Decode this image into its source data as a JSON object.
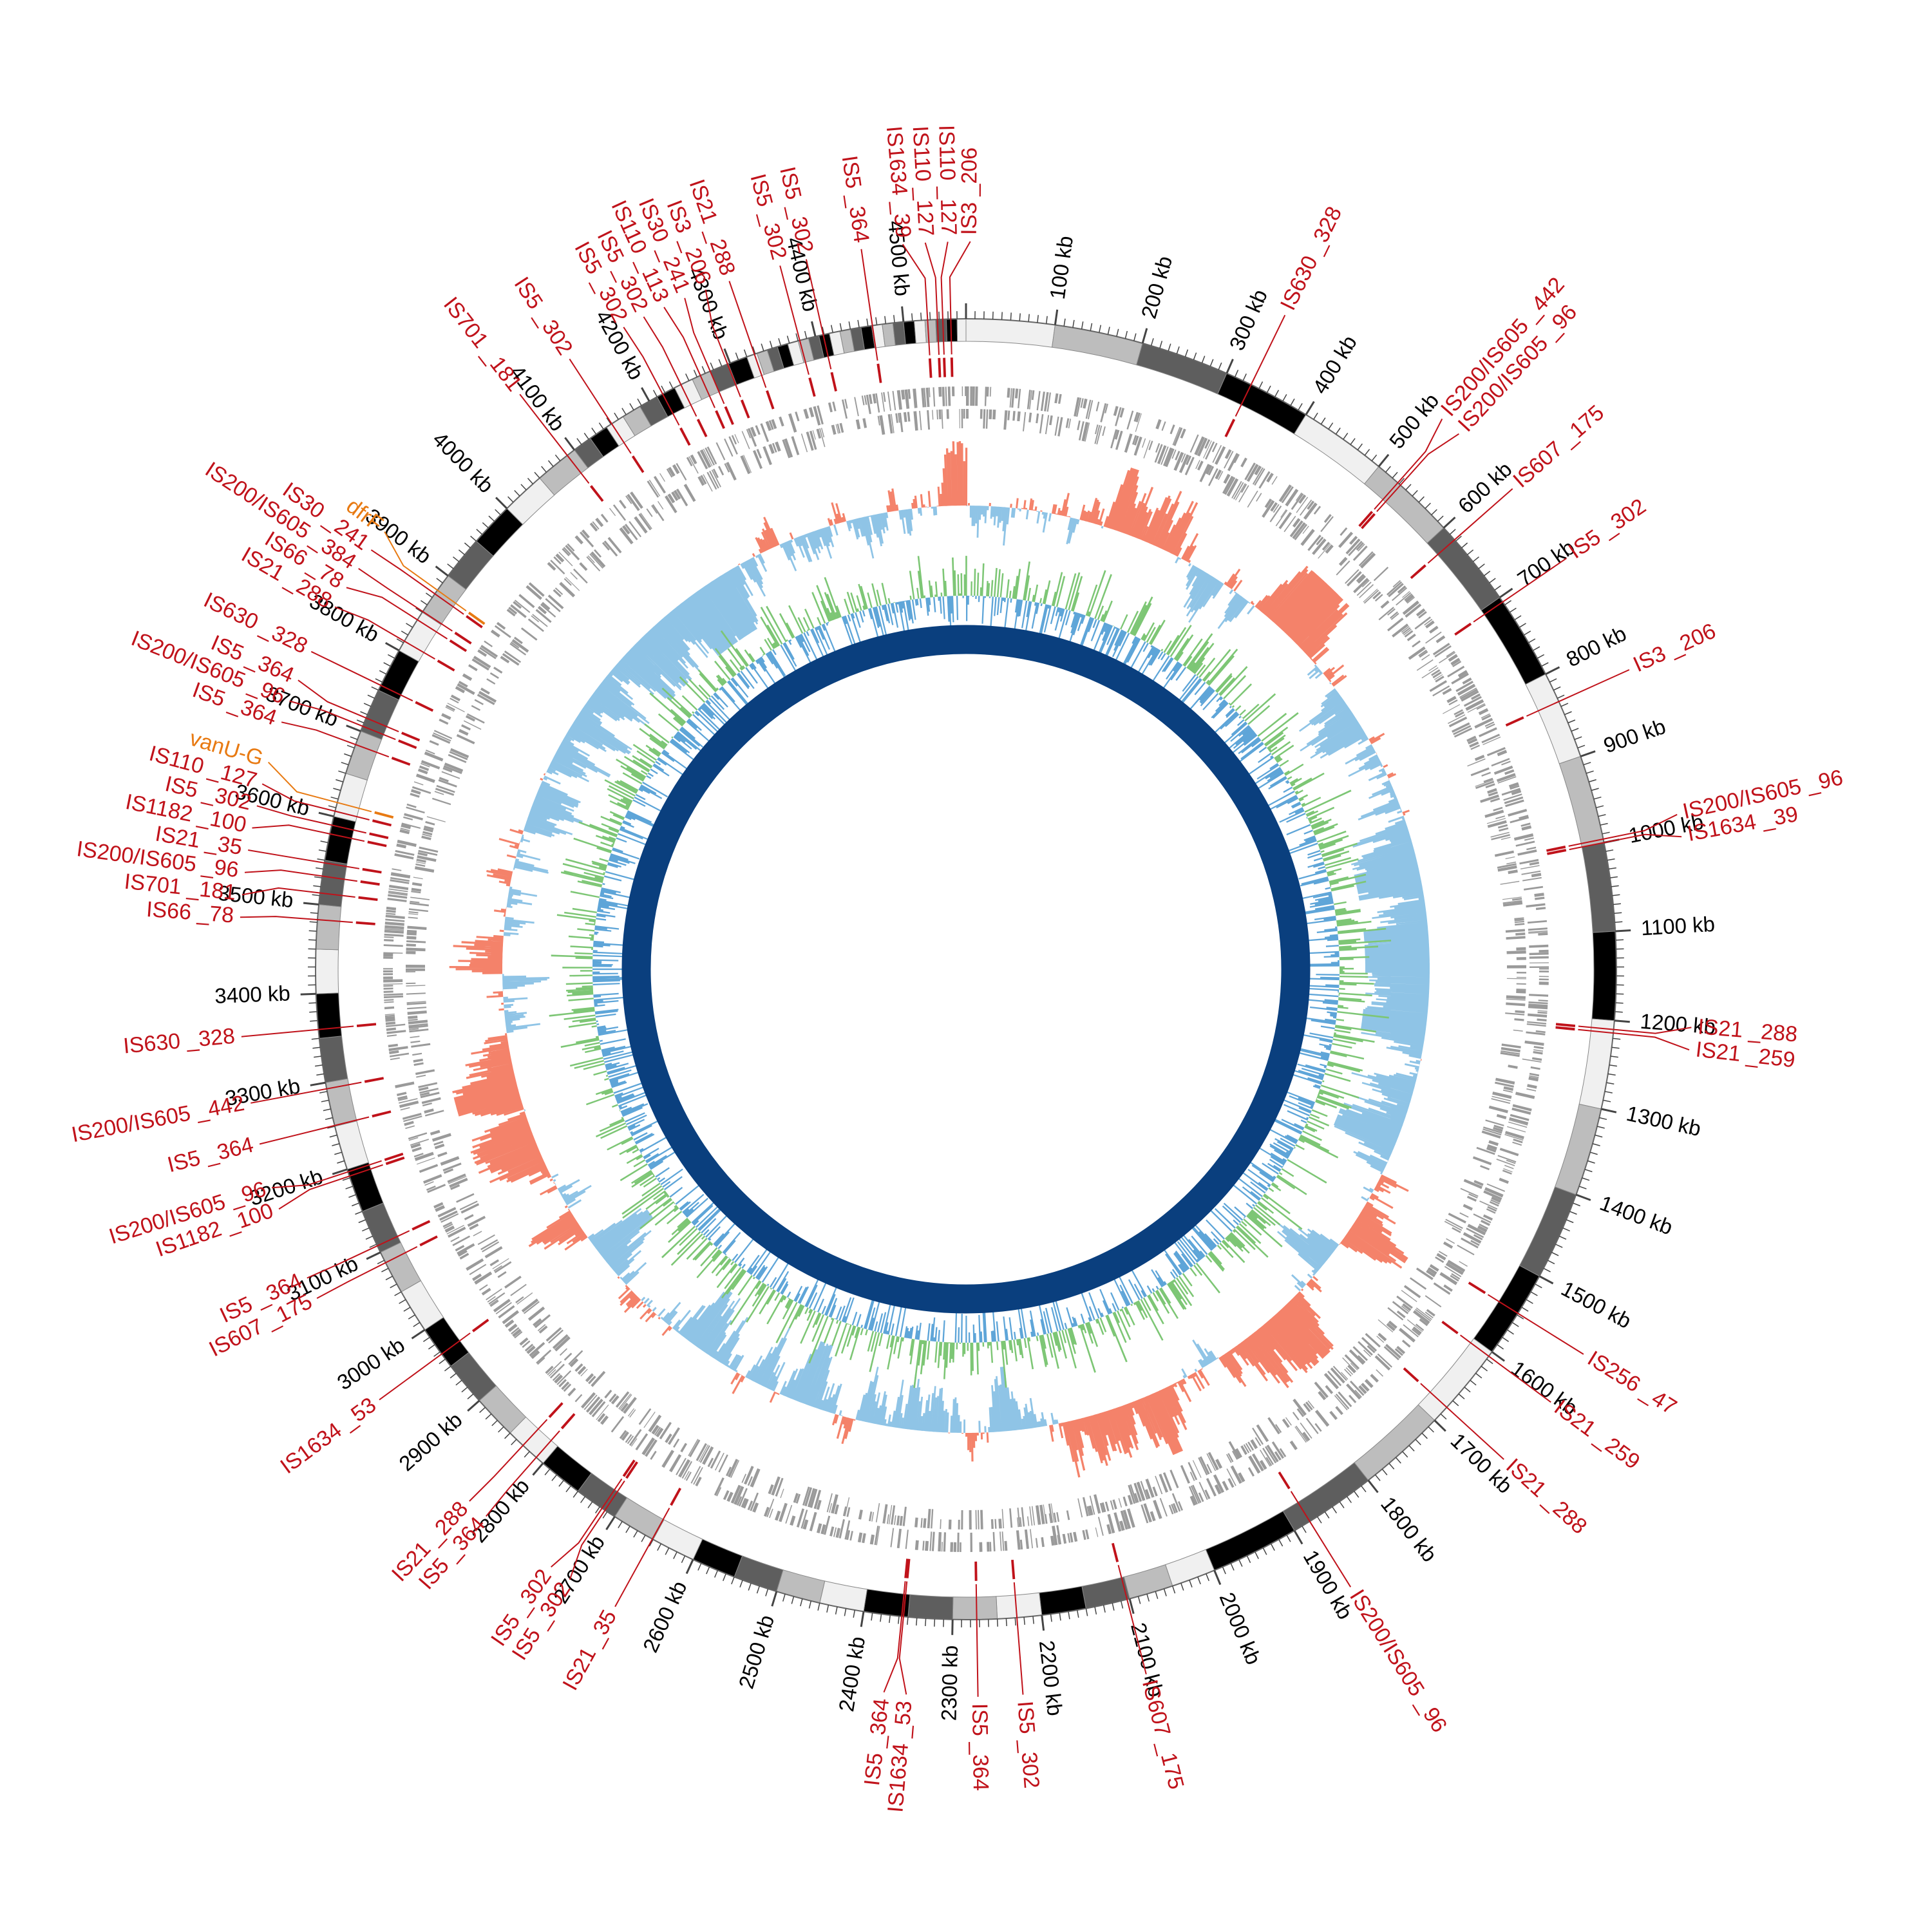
{
  "genome": {
    "length_kb": 4570,
    "tick_label_suffix": " kb",
    "tick_labels": [
      "100 kb",
      "200 kb",
      "300 kb",
      "400 kb",
      "500 kb",
      "600 kb",
      "700 kb",
      "800 kb",
      "900 kb",
      "1000 kb",
      "1100 kb",
      "1200 kb",
      "1300 kb",
      "1400 kb",
      "1500 kb",
      "1600 kb",
      "1700 kb",
      "1800 kb",
      "1900 kb",
      "2000 kb",
      "2100 kb",
      "2200 kb",
      "2300 kb",
      "2400 kb",
      "2500 kb",
      "2600 kb",
      "2700 kb",
      "2800 kb",
      "2900 kb",
      "3000 kb",
      "3100 kb",
      "3200 kb",
      "3300 kb",
      "3400 kb",
      "3500 kb",
      "3600 kb",
      "3700 kb",
      "3800 kb",
      "3900 kb",
      "4000 kb",
      "4100 kb",
      "4200 kb",
      "4300 kb",
      "4400 kb",
      "4500 kb"
    ]
  },
  "colors": {
    "is_label": "#c0121a",
    "gene_label": "#e87a12",
    "tracks_gray": "#9a9a9a",
    "gc_skew_pos": "#f4826a",
    "gc_skew_neg": "#8fc4e6",
    "gc_content_pos": "#7dc675",
    "gc_content_neg": "#5ea5d8",
    "inner_ring": "#0a3f7e"
  },
  "features": [
    {
      "label": "IS630 _328",
      "kb": 330,
      "kind": "is"
    },
    {
      "label": "IS200/IS605 _442",
      "kb": 528,
      "kind": "is"
    },
    {
      "label": "IS200/IS605 _96",
      "kb": 532,
      "kind": "is"
    },
    {
      "label": "IS607 _175",
      "kb": 618,
      "kind": "is"
    },
    {
      "label": "IS5 _302",
      "kb": 706,
      "kind": "is"
    },
    {
      "label": "IS3 _206",
      "kb": 834,
      "kind": "is"
    },
    {
      "label": "IS200/IS605 _96",
      "kb": 996,
      "kind": "is"
    },
    {
      "label": "IS1634 _39",
      "kb": 1000,
      "kind": "is"
    },
    {
      "label": "IS21 _288",
      "kb": 1210,
      "kind": "is"
    },
    {
      "label": "IS21 _259",
      "kb": 1214,
      "kind": "is"
    },
    {
      "label": "IS256 _47",
      "kb": 1548,
      "kind": "is"
    },
    {
      "label": "IS21 _259",
      "kb": 1606,
      "kind": "is"
    },
    {
      "label": "IS21 _288",
      "kb": 1680,
      "kind": "is"
    },
    {
      "label": "IS200/IS605 _96",
      "kb": 1880,
      "kind": "is"
    },
    {
      "label": "IS607 _175",
      "kb": 2103,
      "kind": "is"
    },
    {
      "label": "IS5 _302",
      "kb": 2228,
      "kind": "is"
    },
    {
      "label": "IS5 _364",
      "kb": 2273,
      "kind": "is"
    },
    {
      "label": "IS1634 _53",
      "kb": 2355,
      "kind": "is"
    },
    {
      "label": "IS5 _364",
      "kb": 2357,
      "kind": "is"
    },
    {
      "label": "IS21 _35",
      "kb": 2651,
      "kind": "is"
    },
    {
      "label": "IS5 _302",
      "kb": 2713,
      "kind": "is"
    },
    {
      "label": "IS5 _302",
      "kb": 2717,
      "kind": "is"
    },
    {
      "label": "IS5 _364",
      "kb": 2810,
      "kind": "is"
    },
    {
      "label": "IS21 _288",
      "kb": 2830,
      "kind": "is"
    },
    {
      "label": "IS1634 _53",
      "kb": 2967,
      "kind": "is"
    },
    {
      "label": "IS607 _175",
      "kb": 3087,
      "kind": "is"
    },
    {
      "label": "IS5 _364",
      "kb": 3108,
      "kind": "is"
    },
    {
      "label": "IS1182 _100",
      "kb": 3192,
      "kind": "is"
    },
    {
      "label": "IS200/IS605 _96",
      "kb": 3197,
      "kind": "is"
    },
    {
      "label": "IS5 _364",
      "kb": 3251,
      "kind": "is"
    },
    {
      "label": "IS200/IS605 _442",
      "kb": 3293,
      "kind": "is"
    },
    {
      "label": "IS630 _328",
      "kb": 3360,
      "kind": "is"
    },
    {
      "label": "IS66 _78",
      "kb": 3483,
      "kind": "is"
    },
    {
      "label": "IS701 _181",
      "kb": 3513,
      "kind": "is"
    },
    {
      "label": "IS200/IS605 _96",
      "kb": 3532,
      "kind": "is"
    },
    {
      "label": "IS21 _35",
      "kb": 3547,
      "kind": "is"
    },
    {
      "label": "IS1182 _100",
      "kb": 3580,
      "kind": "is"
    },
    {
      "label": "IS5 _302",
      "kb": 3590,
      "kind": "is"
    },
    {
      "label": "IS110 _127",
      "kb": 3606,
      "kind": "is"
    },
    {
      "label": "vanU-G",
      "kb": 3616,
      "kind": "gene"
    },
    {
      "label": "IS5 _364",
      "kb": 3684,
      "kind": "is"
    },
    {
      "label": "IS200/IS605 _96",
      "kb": 3706,
      "kind": "is"
    },
    {
      "label": "IS5 _364",
      "kb": 3716,
      "kind": "is"
    },
    {
      "label": "IS630 _328",
      "kb": 3756,
      "kind": "is"
    },
    {
      "label": "IS21 _288",
      "kb": 3812,
      "kind": "is"
    },
    {
      "label": "IS66 _78",
      "kb": 3840,
      "kind": "is"
    },
    {
      "label": "IS200/IS605 _384",
      "kb": 3851,
      "kind": "is"
    },
    {
      "label": "IS30 _241",
      "kb": 3875,
      "kind": "is"
    },
    {
      "label": "dfrF",
      "kb": 3880,
      "kind": "gene"
    },
    {
      "label": "IS701 _181",
      "kb": 4090,
      "kind": "is"
    },
    {
      "label": "IS5 _302",
      "kb": 4151,
      "kind": "is"
    },
    {
      "label": "IS5 _302",
      "kb": 4217,
      "kind": "is"
    },
    {
      "label": "IS5 _302",
      "kb": 4240,
      "kind": "is"
    },
    {
      "label": "IS110 _113",
      "kb": 4264,
      "kind": "is"
    },
    {
      "label": "IS30 _241",
      "kb": 4276,
      "kind": "is"
    },
    {
      "label": "IS3 _206",
      "kb": 4297,
      "kind": "is"
    },
    {
      "label": "IS21 _288",
      "kb": 4329,
      "kind": "is"
    },
    {
      "label": "IS5 _302",
      "kb": 4382,
      "kind": "is"
    },
    {
      "label": "IS5 _302",
      "kb": 4409,
      "kind": "is"
    },
    {
      "label": "IS5 _364",
      "kb": 4465,
      "kind": "is"
    },
    {
      "label": "IS1634 _39",
      "kb": 4527,
      "kind": "is"
    },
    {
      "label": "IS110 _127",
      "kb": 4538,
      "kind": "is"
    },
    {
      "label": "IS110 _127",
      "kb": 4544,
      "kind": "is"
    },
    {
      "label": "IS3 _206",
      "kb": 4553,
      "kind": "is"
    }
  ]
}
